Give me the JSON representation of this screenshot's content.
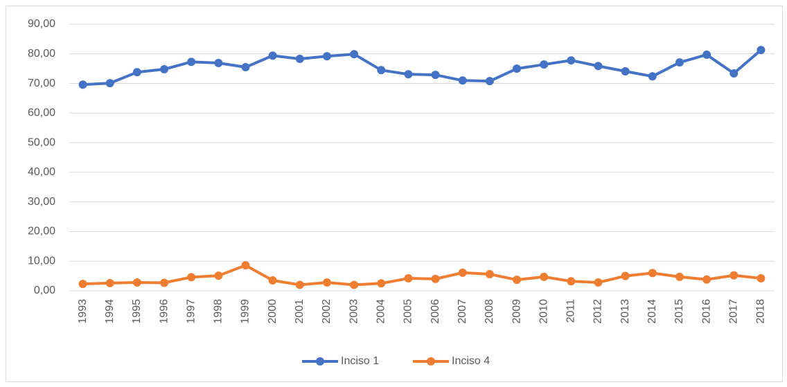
{
  "chart_data": {
    "type": "line",
    "categories": [
      "1993",
      "1994",
      "1995",
      "1996",
      "1997",
      "1998",
      "1999",
      "2000",
      "2001",
      "2002",
      "2003",
      "2004",
      "2005",
      "2006",
      "2007",
      "2008",
      "2009",
      "2010",
      "2011",
      "2012",
      "2013",
      "2014",
      "2015",
      "2016",
      "2017",
      "2018"
    ],
    "series": [
      {
        "name": "Inciso 1",
        "color": "#4472c4",
        "values": [
          69.6,
          70.1,
          73.8,
          74.8,
          77.3,
          76.9,
          75.5,
          79.4,
          78.3,
          79.2,
          79.9,
          74.5,
          73.1,
          72.9,
          71.0,
          70.8,
          75.0,
          76.4,
          77.8,
          75.9,
          74.1,
          72.4,
          77.1,
          79.7,
          73.4,
          81.3
        ]
      },
      {
        "name": "Inciso 4",
        "color": "#ed7d31",
        "values": [
          2.3,
          2.6,
          2.8,
          2.7,
          4.6,
          5.1,
          8.6,
          3.5,
          2.0,
          2.8,
          2.0,
          2.5,
          4.2,
          4.0,
          6.1,
          5.6,
          3.7,
          4.7,
          3.2,
          2.8,
          5.0,
          6.0,
          4.7,
          3.8,
          5.2,
          4.2
        ]
      }
    ],
    "ylim": [
      0,
      90
    ],
    "yticks": [
      {
        "value": 0,
        "label": "0,00"
      },
      {
        "value": 10,
        "label": "10,00"
      },
      {
        "value": 20,
        "label": "20,00"
      },
      {
        "value": 30,
        "label": "30,00"
      },
      {
        "value": 40,
        "label": "40,00"
      },
      {
        "value": 50,
        "label": "50,00"
      },
      {
        "value": 60,
        "label": "60,00"
      },
      {
        "value": 70,
        "label": "70,00"
      },
      {
        "value": 80,
        "label": "80,00"
      },
      {
        "value": 90,
        "label": "90,00"
      }
    ],
    "grid": true,
    "legend": "bottom"
  }
}
